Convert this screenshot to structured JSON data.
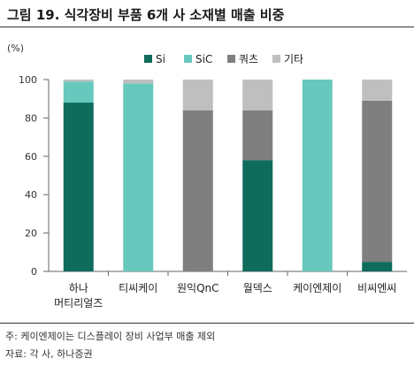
{
  "title": "그림 19. 식각장비 부품 6개 사 소재별 매출 비중",
  "note": "주: 케이엔제이는 디스플레이 장비 사업부 매출 제외",
  "source": "자료: 각 사, 하나증권",
  "chart_data": {
    "type": "bar",
    "stacked": true,
    "ylabel": "(%)",
    "ylim": [
      0,
      100
    ],
    "yticks": [
      0,
      20,
      40,
      60,
      80,
      100
    ],
    "categories": [
      [
        "하나",
        "머티리얼즈"
      ],
      [
        "티씨케이"
      ],
      [
        "원익QnC"
      ],
      [
        "월덱스"
      ],
      [
        "케이엔제이"
      ],
      [
        "비씨엔씨"
      ]
    ],
    "series": [
      {
        "name": "Si",
        "color": "#0f6b5b",
        "values": [
          88,
          0,
          0,
          58,
          0,
          5
        ]
      },
      {
        "name": "SiC",
        "color": "#67c9bd",
        "values": [
          11,
          98,
          0,
          0,
          100,
          0
        ]
      },
      {
        "name": "쿼츠",
        "color": "#7f7f7f",
        "values": [
          0,
          0,
          84,
          26,
          0,
          84
        ]
      },
      {
        "name": "기타",
        "color": "#bfbfbf",
        "values": [
          1,
          2,
          16,
          16,
          0,
          11
        ]
      }
    ],
    "legend_position": "top-right"
  }
}
